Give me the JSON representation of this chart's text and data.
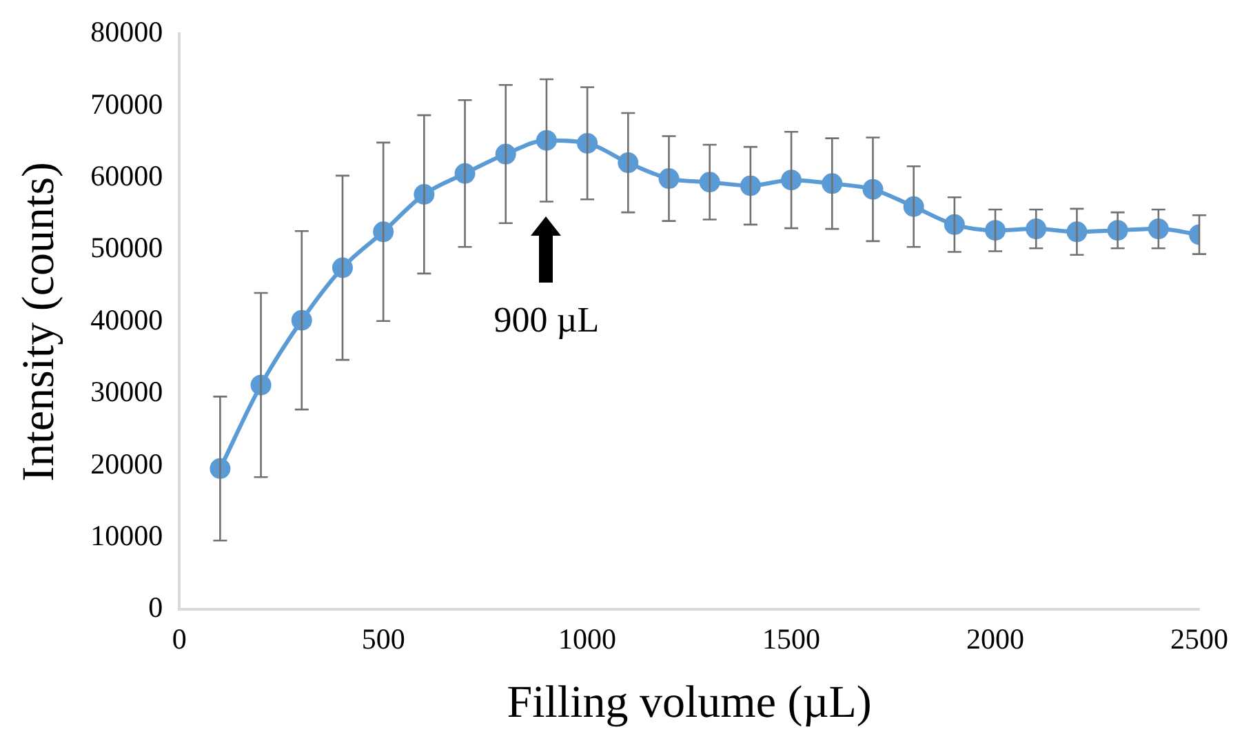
{
  "chart_data": {
    "type": "line",
    "xlabel": "Filling volume (µL)",
    "ylabel": "Intensity (counts)",
    "x": [
      100,
      200,
      300,
      400,
      500,
      600,
      700,
      800,
      900,
      1000,
      1100,
      1200,
      1300,
      1400,
      1500,
      1600,
      1700,
      1800,
      1900,
      2000,
      2100,
      2200,
      2300,
      2400,
      2500
    ],
    "series": [
      {
        "color": "#5b9bd5",
        "values": [
          19600,
          31200,
          40200,
          47500,
          52500,
          57700,
          60600,
          63300,
          65200,
          64800,
          62100,
          59900,
          59400,
          58900,
          59700,
          59200,
          58400,
          56000,
          53500,
          52700,
          52900,
          52500,
          52700,
          52900,
          52100
        ],
        "errors": [
          10000,
          12800,
          12400,
          12800,
          12400,
          11000,
          10200,
          9600,
          8500,
          7800,
          6900,
          5900,
          5200,
          5400,
          6700,
          6300,
          7200,
          5600,
          3800,
          2900,
          2700,
          3200,
          2500,
          2700,
          2700
        ]
      }
    ],
    "xlim": [
      0,
      2500
    ],
    "xticks": [
      0,
      500,
      1000,
      1500,
      2000,
      2500
    ],
    "ylim": [
      0,
      80000
    ],
    "yticks": [
      0,
      10000,
      20000,
      30000,
      40000,
      50000,
      60000,
      70000,
      80000
    ],
    "grid": false,
    "legend": false,
    "marker": "circle",
    "line_style": "solid",
    "annotations": [
      "900 µL"
    ]
  }
}
